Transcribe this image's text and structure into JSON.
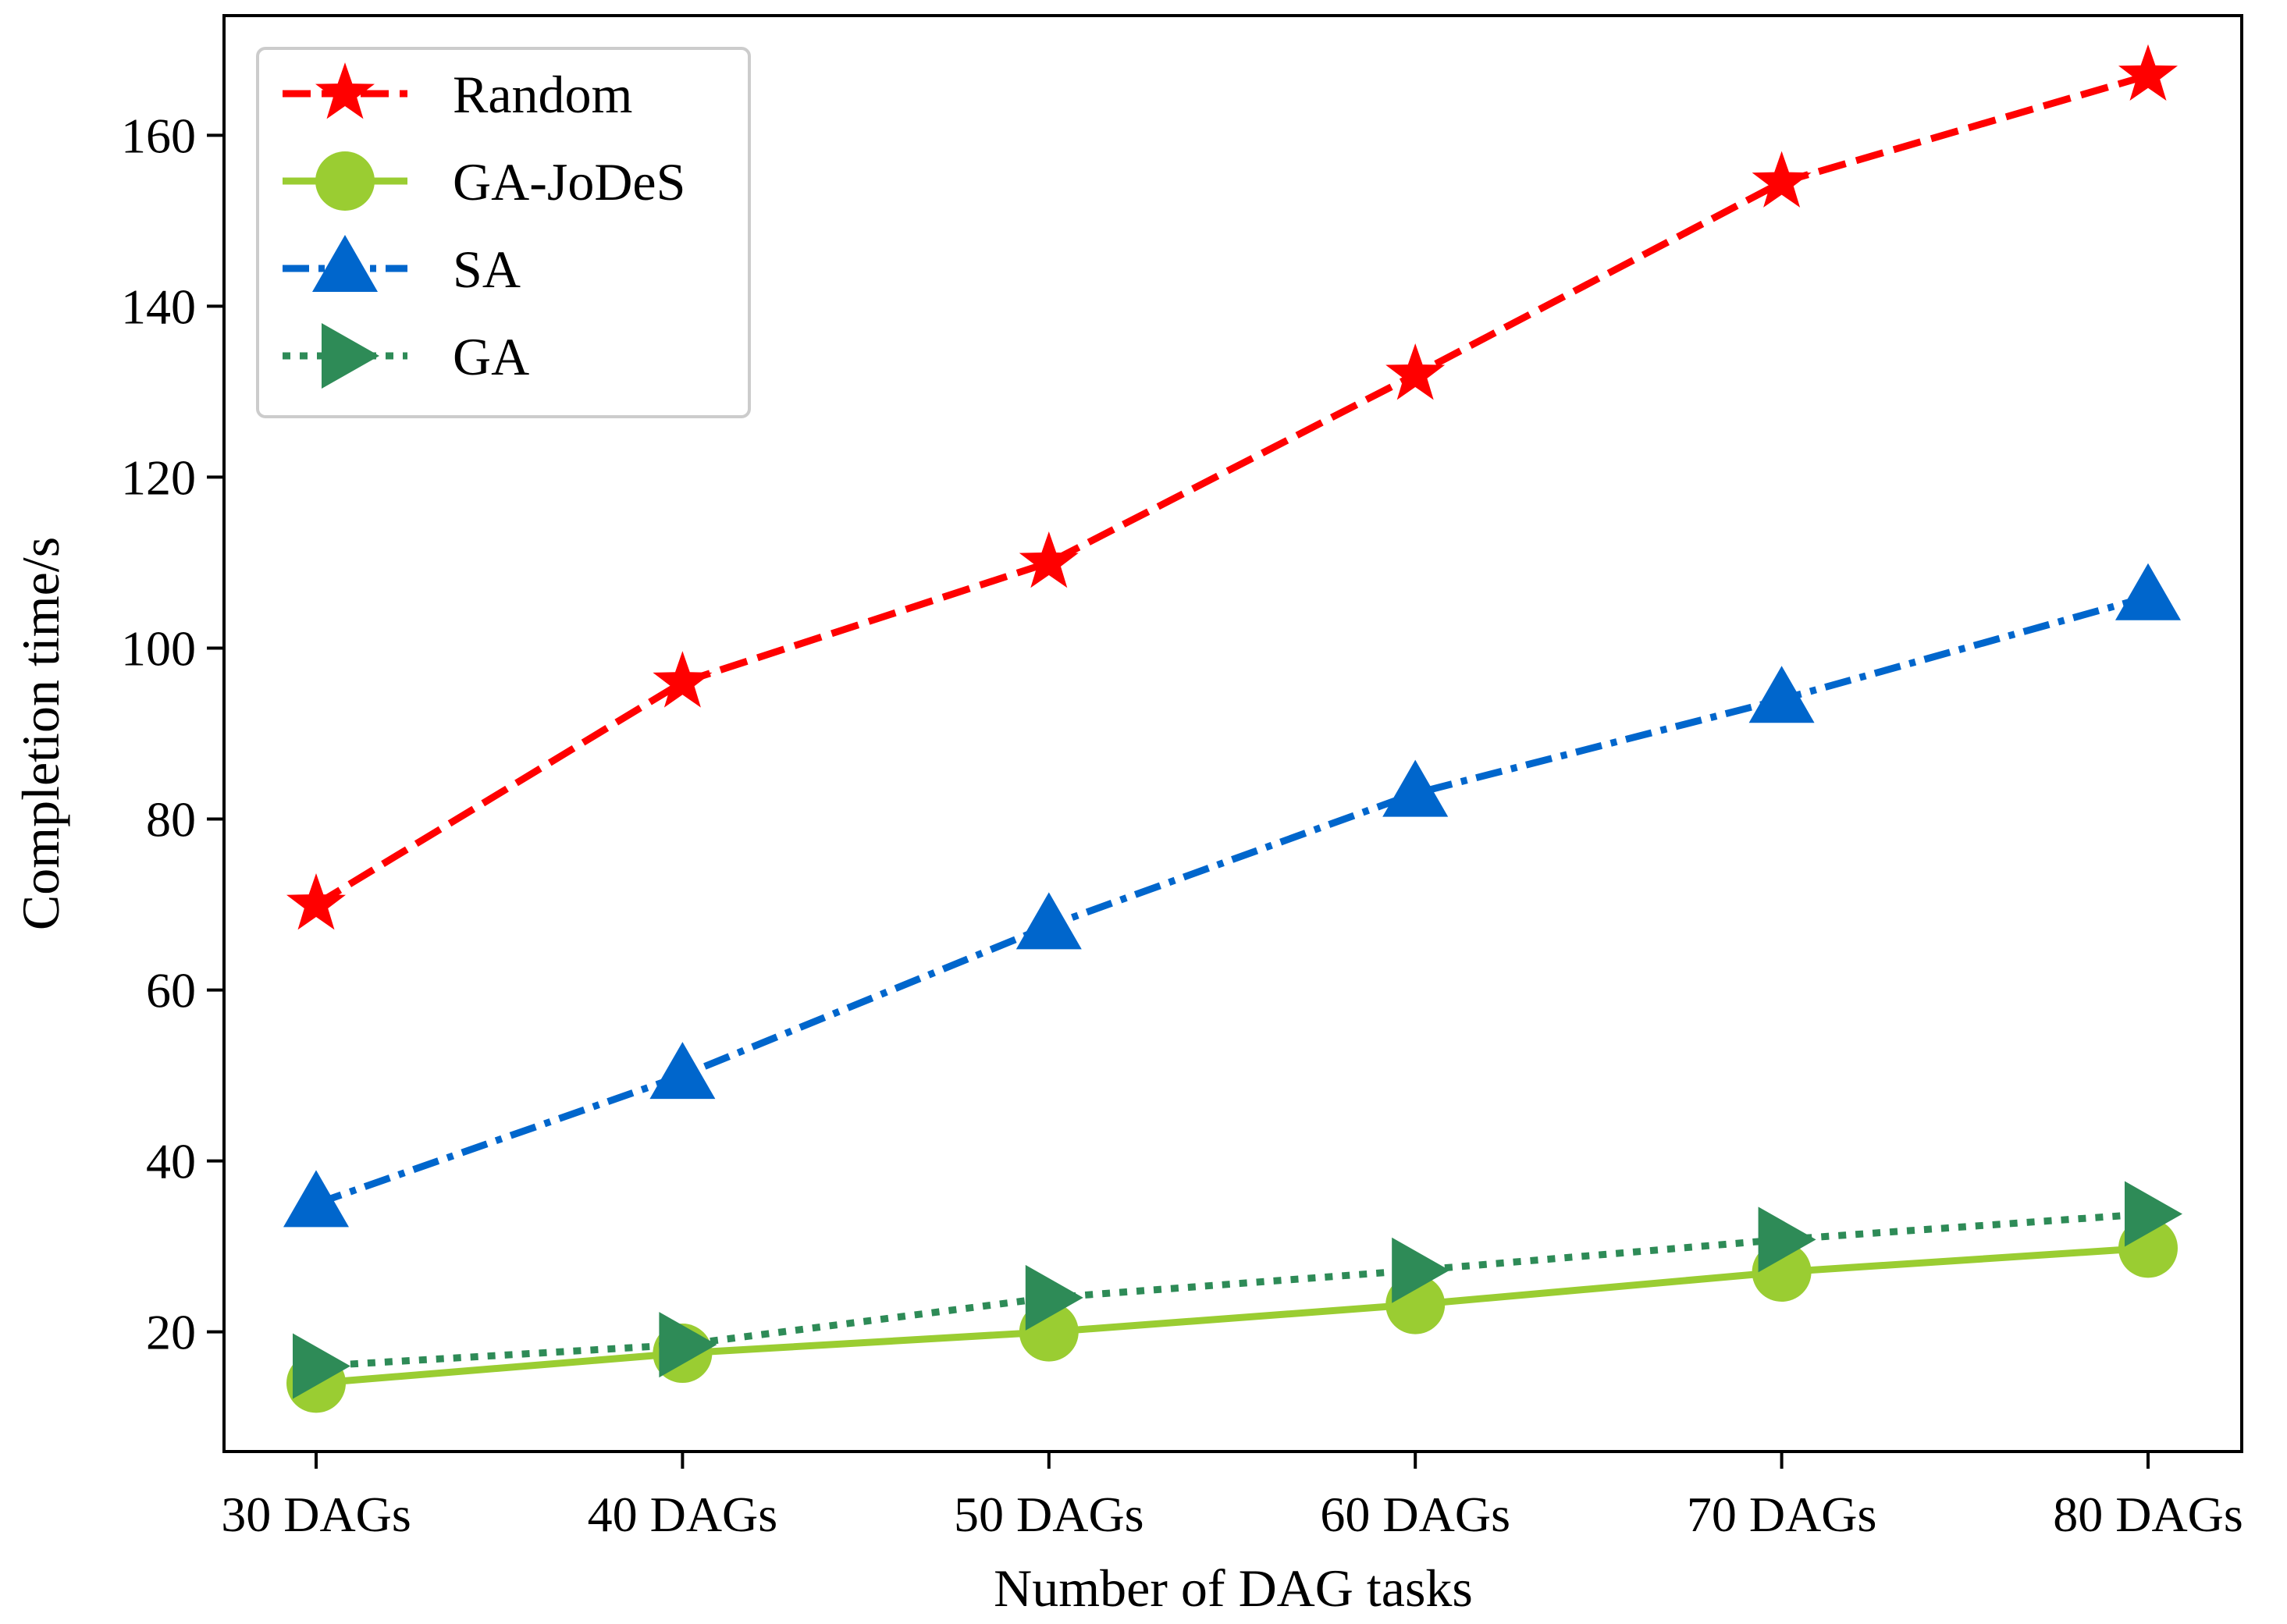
{
  "chart_data": {
    "type": "line",
    "title": "",
    "xlabel": "Number of DAG tasks",
    "ylabel": "Completion time/s",
    "categories": [
      "30 DAGs",
      "40 DAGs",
      "50 DAGs",
      "60 DAGs",
      "70 DAGs",
      "80 DAGs"
    ],
    "ylim": [
      6,
      174
    ],
    "yticks": [
      20,
      40,
      60,
      80,
      100,
      120,
      140,
      160
    ],
    "grid": false,
    "legend_position": "top-left",
    "series": [
      {
        "name": "Random",
        "values": [
          70,
          96,
          110,
          132,
          154.5,
          167
        ],
        "color": "#ff0000",
        "marker": "star",
        "line_style": "dashed"
      },
      {
        "name": "GA-JoDeS",
        "values": [
          14,
          17.5,
          20,
          23.2,
          27,
          29.8
        ],
        "color": "#9acd32",
        "marker": "circle",
        "line_style": "solid"
      },
      {
        "name": "SA",
        "values": [
          35,
          50,
          67.5,
          83,
          94,
          106
        ],
        "color": "#0066cc",
        "marker": "triangle-up",
        "line_style": "dash-dot"
      },
      {
        "name": "GA",
        "values": [
          16,
          18.5,
          24,
          27.2,
          30.8,
          33.8
        ],
        "color": "#2e8b57",
        "marker": "triangle-right",
        "line_style": "dotted"
      }
    ]
  }
}
